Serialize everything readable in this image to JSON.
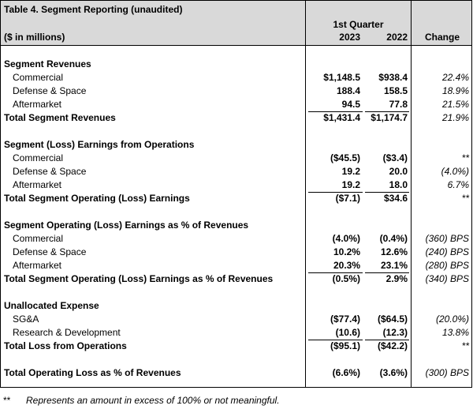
{
  "table": {
    "title": "Table 4.  Segment Reporting (unaudited)",
    "units": "($ in millions)",
    "period": "1st Quarter",
    "columns": [
      "2023",
      "2022",
      "Change"
    ],
    "sections": [
      {
        "heading": "Segment Revenues",
        "rows": [
          [
            "Commercial",
            "$1,148.5",
            "$938.4",
            "22.4%"
          ],
          [
            "Defense & Space",
            "188.4",
            "158.5",
            "18.9%"
          ],
          [
            "Aftermarket",
            "94.5",
            "77.8",
            "21.5%"
          ]
        ],
        "total": [
          "Total Segment Revenues",
          "$1,431.4",
          "$1,174.7",
          "21.9%"
        ]
      },
      {
        "heading": "Segment (Loss) Earnings from Operations",
        "rows": [
          [
            "Commercial",
            "($45.5)",
            "($3.4)",
            "**"
          ],
          [
            "Defense & Space",
            "19.2",
            "20.0",
            "(4.0%)"
          ],
          [
            "Aftermarket",
            "19.2",
            "18.0",
            "6.7%"
          ]
        ],
        "total": [
          "Total Segment Operating (Loss) Earnings",
          "($7.1)",
          "$34.6",
          "**"
        ]
      },
      {
        "heading": "Segment Operating (Loss) Earnings as % of Revenues",
        "rows": [
          [
            "Commercial",
            "(4.0%)",
            "(0.4%)",
            "(360) BPS"
          ],
          [
            "Defense & Space",
            "10.2%",
            "12.6%",
            "(240) BPS"
          ],
          [
            "Aftermarket",
            "20.3%",
            "23.1%",
            "(280) BPS"
          ]
        ],
        "total": [
          "Total Segment Operating (Loss) Earnings as % of Revenues",
          "(0.5%)",
          "2.9%",
          "(340) BPS"
        ]
      },
      {
        "heading": "Unallocated Expense",
        "rows": [
          [
            "SG&A",
            "($77.4)",
            "($64.5)",
            "(20.0%)"
          ],
          [
            "Research & Development",
            "(10.6)",
            "(12.3)",
            "13.8%"
          ]
        ],
        "total": [
          "Total Loss from Operations",
          "($95.1)",
          "($42.2)",
          "**"
        ]
      },
      {
        "total": [
          "Total Operating Loss as % of Revenues",
          "(6.6%)",
          "(3.6%)",
          "(300) BPS"
        ]
      }
    ],
    "footnote": {
      "mark": "**",
      "text": "Represents an amount in excess of 100% or not meaningful."
    }
  }
}
